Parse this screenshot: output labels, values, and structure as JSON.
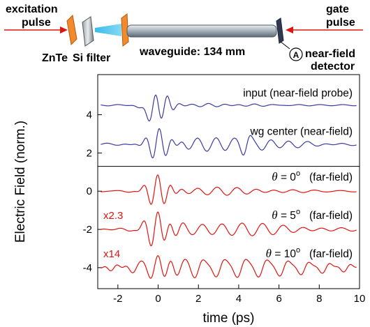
{
  "schematic": {
    "excitation_label": [
      "excitation",
      "pulse"
    ],
    "gate_label": [
      "gate",
      "pulse"
    ],
    "zntePlate": "ZnTe",
    "filter": "Si filter",
    "waveguide": "waveguide: 134 mm",
    "detector_badge": "A",
    "detector": [
      "near-field",
      "detector"
    ]
  },
  "chart_data": {
    "type": "line",
    "xlabel": "time (ps)",
    "ylabel": "Electric Field (norm.)",
    "xlim": [
      -3,
      10
    ],
    "ylim": [
      -5.1,
      6.1
    ],
    "xticks": [
      -2,
      0,
      2,
      4,
      6,
      8,
      10
    ],
    "yticks": [
      4,
      2,
      0,
      -2,
      -4
    ],
    "grid": false,
    "divider_y": 1.3,
    "series": [
      {
        "name": "input (near-field probe)",
        "color": "#3a3aa3",
        "offset": 4.5,
        "multiplier": "",
        "kind": "input",
        "label_lines": [
          "input (near-field probe)"
        ]
      },
      {
        "name": "wg center (near-field)",
        "color": "#3a3aa3",
        "offset": 2.45,
        "multiplier": "",
        "kind": "center",
        "label_lines": [
          "wg center (near-field)"
        ]
      },
      {
        "name": "θ = 0° (far-field)",
        "color": "#e0140f",
        "offset": 0.0,
        "multiplier": "",
        "kind": "far0",
        "label_lines": [
          "θ",
          " = 0",
          "o",
          "(far-field)"
        ]
      },
      {
        "name": "θ = 5° (far-field)",
        "color": "#e0140f",
        "offset": -2.0,
        "multiplier": "x2.3",
        "kind": "far5",
        "label_lines": [
          "θ",
          " = 5",
          "o",
          "(far-field)"
        ]
      },
      {
        "name": "θ = 10° (far-field)",
        "color": "#e0140f",
        "offset": -4.0,
        "multiplier": "x14",
        "kind": "far10",
        "label_lines": [
          "θ",
          " = 10",
          "o",
          "(far-field)"
        ]
      }
    ]
  }
}
